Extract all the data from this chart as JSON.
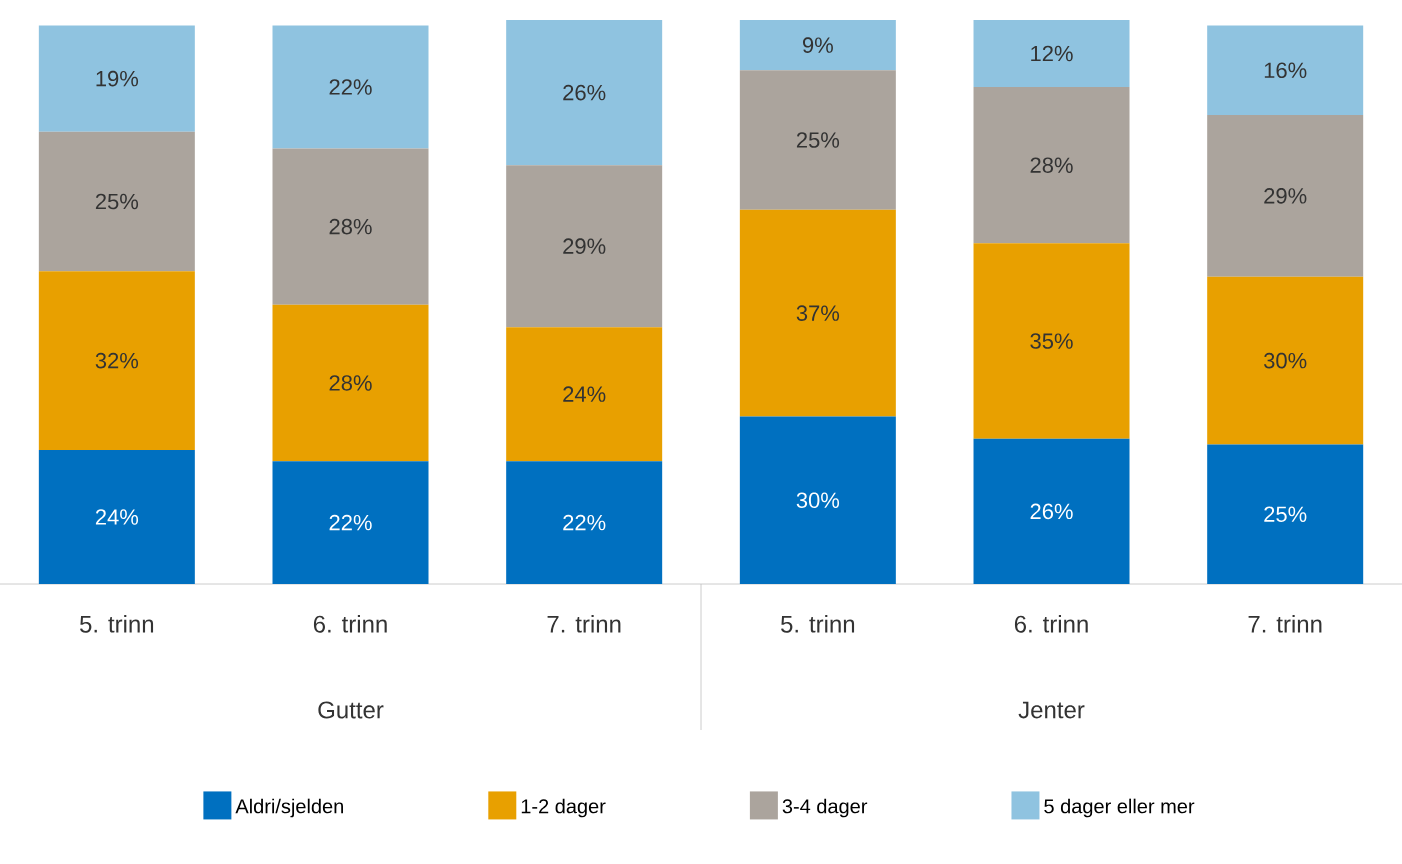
{
  "chart_data": {
    "type": "bar",
    "stacked": true,
    "categories": [
      "5. trinn",
      "6. trinn",
      "7. trinn",
      "5. trinn",
      "6. trinn",
      "7. trinn"
    ],
    "annotations": [
      "Gutter",
      "Jenter"
    ],
    "tick_labels": "x",
    "grid": false,
    "legend": "bottom",
    "series": [
      {
        "name": "Aldri/sjelden",
        "color": "#0070c0",
        "values": [
          24,
          22,
          22,
          30,
          26,
          25
        ],
        "value_labels": [
          "24%",
          "22%",
          "22%",
          "30%",
          "26%",
          "25%"
        ]
      },
      {
        "name": "1-2 dager",
        "color": "#e8a000",
        "values": [
          32,
          28,
          24,
          37,
          35,
          30
        ],
        "value_labels": [
          "32%",
          "28%",
          "24%",
          "37%",
          "35%",
          "30%"
        ]
      },
      {
        "name": "3-4 dager",
        "color": "#aba49d",
        "values": [
          25,
          28,
          29,
          25,
          28,
          29
        ],
        "value_labels": [
          "25%",
          "28%",
          "29%",
          "25%",
          "28%",
          "29%"
        ]
      },
      {
        "name": "5 dager eller mer",
        "color": "#8fc3e0",
        "values": [
          19,
          22,
          26,
          9,
          12,
          16
        ],
        "value_labels": [
          "19%",
          "22%",
          "26%",
          "9%",
          "12%",
          "16%"
        ]
      }
    ]
  }
}
